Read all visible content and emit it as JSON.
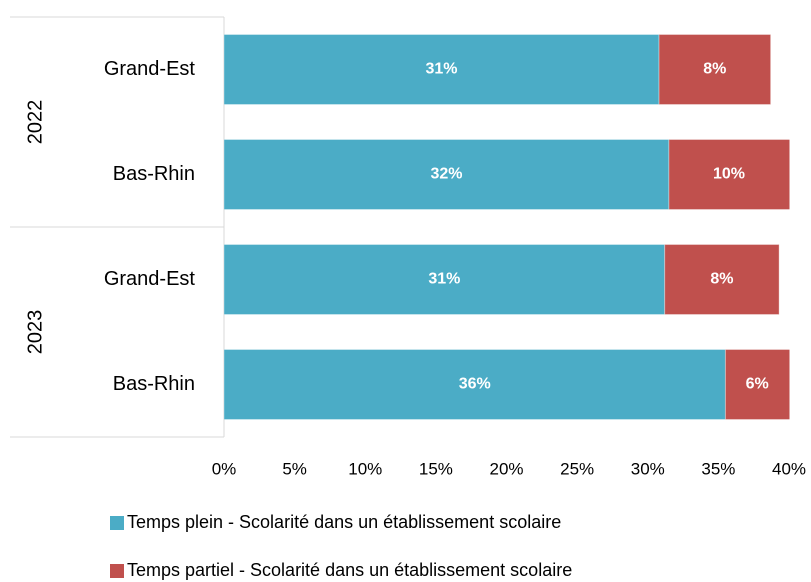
{
  "chart_data": {
    "type": "stacked-barh",
    "groups": [
      "2022",
      "2023"
    ],
    "categories": [
      "Grand-Est",
      "Bas-Rhin",
      "Grand-Est",
      "Bas-Rhin"
    ],
    "series": [
      {
        "name": "Temps plein - Scolarité dans un établissement scolaire",
        "color": "#4bacc6",
        "values": [
          30.8,
          31.5,
          31.2,
          35.5
        ],
        "value_labels": [
          "31%",
          "32%",
          "31%",
          "36%"
        ]
      },
      {
        "name": "Temps partiel  - Scolarité dans un établissement scolaire",
        "color": "#c0504d",
        "values": [
          7.9,
          10.2,
          8.1,
          6.2
        ],
        "value_labels": [
          "8%",
          "10%",
          "8%",
          "6%"
        ]
      }
    ],
    "xlim": [
      0,
      40
    ],
    "xticks": [
      {
        "value": 0,
        "label": "0%"
      },
      {
        "value": 5,
        "label": "5%"
      },
      {
        "value": 10,
        "label": "10%"
      },
      {
        "value": 15,
        "label": "15%"
      },
      {
        "value": 20,
        "label": "20%"
      },
      {
        "value": 25,
        "label": "25%"
      },
      {
        "value": 30,
        "label": "30%"
      },
      {
        "value": 35,
        "label": "35%"
      },
      {
        "value": 40,
        "label": "40%"
      }
    ],
    "legend": "bottom"
  }
}
